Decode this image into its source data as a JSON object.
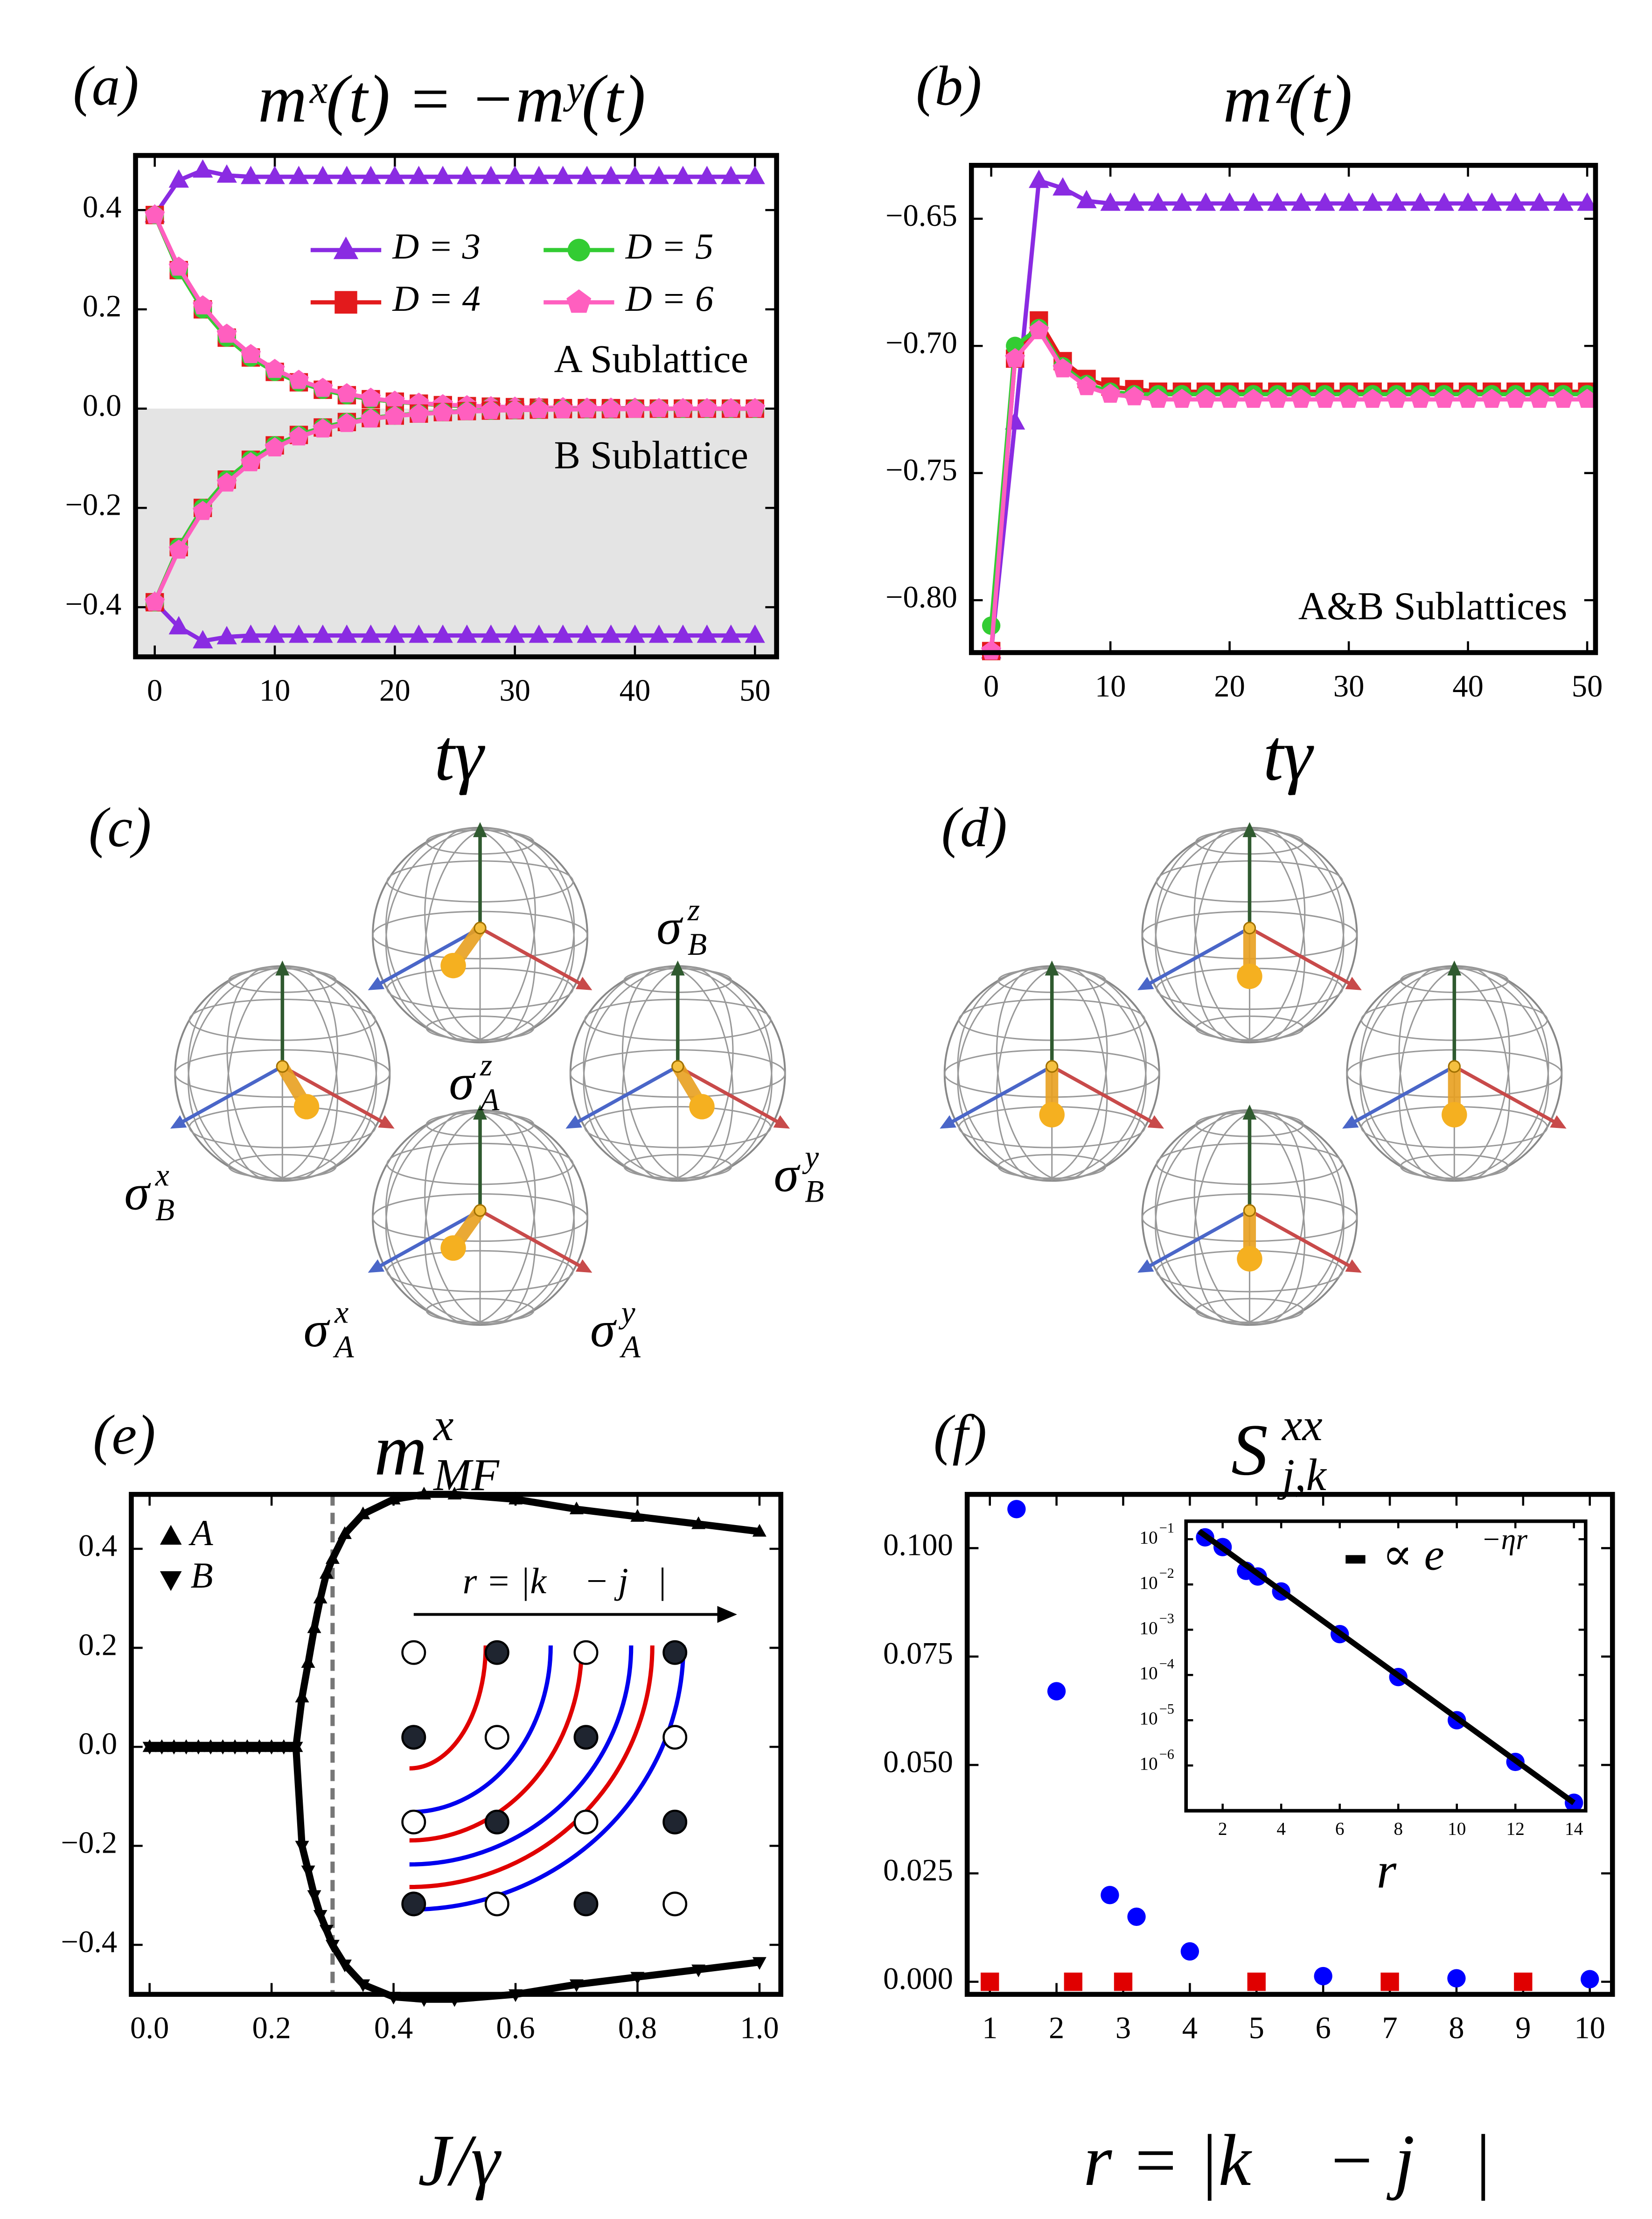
{
  "chart_data": [
    {
      "type": "line",
      "panel": "(a)",
      "title": "mˣ(t) = −mʸ(t)",
      "xlabel": "tγ",
      "annotations": [
        "A Sublattice",
        "B Sublattice"
      ],
      "x": [
        0,
        2,
        4,
        6,
        8,
        10,
        12,
        14,
        16,
        18,
        20,
        22,
        24,
        26,
        28,
        30,
        32,
        34,
        36,
        38,
        40,
        42,
        44,
        46,
        48,
        50
      ],
      "xlim": [
        -1.6,
        51.8
      ],
      "xticks": [
        0,
        10,
        20,
        30,
        40,
        50
      ],
      "ylim": [
        -0.5,
        0.51
      ],
      "yticks": [
        {
          "value": -0.4,
          "label": "−0.4"
        },
        {
          "value": -0.2,
          "label": "−0.2"
        },
        {
          "value": 0,
          "label": "0.0"
        },
        0.2,
        0.4
      ],
      "legend": "upper right",
      "series": [
        {
          "name": "D = 3",
          "color": "#8a2be2",
          "marker": "triangle",
          "values": [
            0.39,
            0.46,
            0.48,
            0.47,
            0.467,
            0.467,
            0.467,
            0.467,
            0.467,
            0.467,
            0.467,
            0.467,
            0.467,
            0.467,
            0.467,
            0.467,
            0.467,
            0.467,
            0.467,
            0.467,
            0.467,
            0.467,
            0.467,
            0.467,
            0.467,
            0.467
          ]
        },
        {
          "name": "D = 4",
          "color": "#e31a1c",
          "marker": "square",
          "values": [
            0.39,
            0.279,
            0.2,
            0.143,
            0.103,
            0.074,
            0.053,
            0.038,
            0.027,
            0.019,
            0.014,
            0.01,
            0.007,
            0.005,
            0.004,
            0.003,
            0.002,
            0.001,
            0.001,
            0.001,
            0,
            0,
            0,
            0,
            0,
            0
          ]
        },
        {
          "name": "D = 5",
          "color": "#33cc33",
          "marker": "circle",
          "values": [
            0.39,
            0.279,
            0.2,
            0.143,
            0.103,
            0.074,
            0.053,
            0.038,
            0.027,
            0.019,
            0.014,
            0.01,
            0.007,
            0.005,
            0.004,
            0.003,
            0.002,
            0.001,
            0.001,
            0.001,
            0,
            0,
            0,
            0,
            0,
            0
          ]
        },
        {
          "name": "D = 6",
          "color": "#ff5fbf",
          "marker": "pentagon",
          "values": [
            0.39,
            0.285,
            0.207,
            0.15,
            0.109,
            0.079,
            0.057,
            0.041,
            0.03,
            0.021,
            0.015,
            0.011,
            0.008,
            0.006,
            0.004,
            0.003,
            0.002,
            0.002,
            0.001,
            0.001,
            0.001,
            0,
            0,
            0,
            0,
            0
          ]
        },
        {
          "color": "#8a2be2",
          "marker": "triangle",
          "values": [
            -0.39,
            -0.44,
            -0.468,
            -0.46,
            -0.457,
            -0.457,
            -0.457,
            -0.457,
            -0.457,
            -0.457,
            -0.457,
            -0.457,
            -0.457,
            -0.457,
            -0.457,
            -0.457,
            -0.457,
            -0.457,
            -0.457,
            -0.457,
            -0.457,
            -0.457,
            -0.457,
            -0.457,
            -0.457,
            -0.457
          ]
        },
        {
          "color": "#e31a1c",
          "marker": "square",
          "values": [
            -0.39,
            -0.279,
            -0.2,
            -0.143,
            -0.103,
            -0.074,
            -0.053,
            -0.038,
            -0.027,
            -0.019,
            -0.014,
            -0.01,
            -0.007,
            -0.005,
            -0.004,
            -0.003,
            -0.002,
            -0.001,
            -0.001,
            -0.001,
            0,
            0,
            0,
            0,
            0,
            0
          ]
        },
        {
          "color": "#33cc33",
          "marker": "circle",
          "values": [
            -0.39,
            -0.279,
            -0.2,
            -0.143,
            -0.103,
            -0.074,
            -0.053,
            -0.038,
            -0.027,
            -0.019,
            -0.014,
            -0.01,
            -0.007,
            -0.005,
            -0.004,
            -0.003,
            -0.002,
            -0.001,
            -0.001,
            -0.001,
            0,
            0,
            0,
            0,
            0,
            0
          ]
        },
        {
          "color": "#ff5fbf",
          "marker": "pentagon",
          "values": [
            -0.39,
            -0.285,
            -0.207,
            -0.15,
            -0.109,
            -0.079,
            -0.057,
            -0.041,
            -0.03,
            -0.021,
            -0.015,
            -0.011,
            -0.008,
            -0.006,
            -0.004,
            -0.003,
            -0.002,
            -0.002,
            -0.001,
            -0.001,
            -0.001,
            0,
            0,
            0,
            0,
            0
          ]
        }
      ]
    },
    {
      "type": "line",
      "panel": "(b)",
      "title": "mᶻ(t)",
      "xlabel": "tγ",
      "annotations": [
        "A&B Sublattices"
      ],
      "x": [
        0,
        2,
        4,
        6,
        8,
        10,
        12,
        14,
        16,
        18,
        20,
        22,
        24,
        26,
        28,
        30,
        32,
        34,
        36,
        38,
        40,
        42,
        44,
        46,
        48,
        50
      ],
      "xlim": [
        -1.66,
        50.7
      ],
      "xticks": [
        0,
        10,
        20,
        30,
        40,
        50
      ],
      "ylim": [
        -0.8206,
        -0.629
      ],
      "yticks": [
        {
          "value": -0.8,
          "label": "−0.80"
        },
        {
          "value": -0.75,
          "label": "−0.75"
        },
        {
          "value": -0.7,
          "label": "−0.70"
        },
        {
          "value": -0.65,
          "label": "−0.65"
        }
      ],
      "series": [
        {
          "color": "#8a2be2",
          "marker": "triangle",
          "values": [
            -0.82,
            -0.73,
            -0.635,
            -0.638,
            -0.643,
            -0.644,
            -0.644,
            -0.644,
            -0.644,
            -0.644,
            -0.644,
            -0.644,
            -0.644,
            -0.644,
            -0.644,
            -0.644,
            -0.644,
            -0.644,
            -0.644,
            -0.644,
            -0.644,
            -0.644,
            -0.644,
            -0.644,
            -0.644,
            -0.644
          ]
        },
        {
          "color": "#e31a1c",
          "marker": "square",
          "values": [
            -0.82,
            -0.705,
            -0.69,
            -0.706,
            -0.713,
            -0.716,
            -0.717,
            -0.718,
            -0.718,
            -0.718,
            -0.718,
            -0.718,
            -0.718,
            -0.718,
            -0.718,
            -0.718,
            -0.718,
            -0.718,
            -0.718,
            -0.718,
            -0.718,
            -0.718,
            -0.718,
            -0.718,
            -0.718,
            -0.718
          ]
        },
        {
          "color": "#33cc33",
          "marker": "circle",
          "values": [
            -0.81,
            -0.7,
            -0.693,
            -0.708,
            -0.715,
            -0.718,
            -0.719,
            -0.719,
            -0.719,
            -0.719,
            -0.719,
            -0.719,
            -0.719,
            -0.719,
            -0.719,
            -0.719,
            -0.719,
            -0.719,
            -0.719,
            -0.719,
            -0.719,
            -0.719,
            -0.719,
            -0.719,
            -0.719,
            -0.719
          ]
        },
        {
          "color": "#ff5fbf",
          "marker": "pentagon",
          "values": [
            -0.82,
            -0.705,
            -0.694,
            -0.709,
            -0.716,
            -0.719,
            -0.72,
            -0.721,
            -0.721,
            -0.721,
            -0.721,
            -0.721,
            -0.721,
            -0.721,
            -0.721,
            -0.721,
            -0.721,
            -0.721,
            -0.721,
            -0.721,
            -0.721,
            -0.721,
            -0.721,
            -0.721,
            -0.721,
            -0.721
          ]
        }
      ]
    },
    {
      "type": "line",
      "panel": "(e)",
      "title": {
        "text": "m",
        "sup": "x",
        "sub": "MF"
      },
      "xlabel": "J/γ",
      "inset_label": "r = |k⃗ − j⃗|",
      "x": [
        0,
        0.02,
        0.04,
        0.06,
        0.08,
        0.1,
        0.12,
        0.14,
        0.16,
        0.18,
        0.2,
        0.22,
        0.24,
        0.25,
        0.26,
        0.27,
        0.28,
        0.29,
        0.3,
        0.32,
        0.35,
        0.4,
        0.45,
        0.5,
        0.6,
        0.7,
        0.8,
        0.9,
        1.0
      ],
      "xlim": [
        -0.03,
        1.035
      ],
      "xticks": [
        {
          "value": 0,
          "label": "0.0"
        },
        0.2,
        0.4,
        0.6,
        0.8,
        {
          "value": 1,
          "label": "1.0"
        }
      ],
      "ylim": [
        -0.5,
        0.51
      ],
      "yticks": [
        {
          "value": -0.4,
          "label": "−0.4"
        },
        {
          "value": -0.2,
          "label": "−0.2"
        },
        {
          "value": 0,
          "label": "0.0"
        },
        0.2,
        0.4
      ],
      "vline": 0.3,
      "legend": "upper left",
      "series": [
        {
          "name": "A",
          "color": "#000000",
          "marker": "triangle",
          "values": [
            0,
            0,
            0,
            0,
            0,
            0,
            0,
            0,
            0,
            0,
            0,
            0,
            0,
            0.1,
            0.17,
            0.24,
            0.3,
            0.35,
            0.38,
            0.43,
            0.47,
            0.5,
            0.51,
            0.51,
            0.5,
            0.48,
            0.465,
            0.45,
            0.435
          ]
        },
        {
          "name": "B",
          "color": "#000000",
          "marker": "triangle-down",
          "values": [
            0,
            0,
            0,
            0,
            0,
            0,
            0,
            0,
            0,
            0,
            0,
            0,
            0,
            -0.2,
            -0.25,
            -0.3,
            -0.34,
            -0.37,
            -0.4,
            -0.44,
            -0.48,
            -0.505,
            -0.51,
            -0.51,
            -0.5,
            -0.48,
            -0.465,
            -0.45,
            -0.435
          ]
        }
      ]
    },
    {
      "type": "scatter",
      "panel": "(f)",
      "title": {
        "text": "S",
        "sup": "xx",
        "sub": "j,k"
      },
      "xlabel": "r = |k⃗ − j⃗|",
      "xlim": [
        0.66,
        10.34
      ],
      "xticks": [
        1,
        2,
        3,
        4,
        5,
        6,
        7,
        8,
        9,
        10
      ],
      "ylim": [
        -0.0029,
        0.1124
      ],
      "yticks": [
        {
          "value": 0,
          "label": "0.000"
        },
        0.025,
        {
          "value": 0.05,
          "label": "0.050"
        },
        0.075,
        {
          "value": 0.1,
          "label": "0.100"
        }
      ],
      "series": [
        {
          "color": "#0000ff",
          "marker": "circle",
          "x": [
            1.4,
            2,
            2.8,
            3.2,
            4,
            6,
            8,
            10
          ],
          "values": [
            0.109,
            0.067,
            0.02,
            0.015,
            0.007,
            0.0013,
            0.0008,
            0.0006
          ]
        },
        {
          "color": "#e00000",
          "marker": "square",
          "x": [
            1,
            2.25,
            3,
            5,
            7,
            9
          ],
          "values": [
            0,
            0,
            0,
            0,
            0,
            0
          ]
        }
      ]
    },
    {
      "type": "scatter",
      "xlabel": "r",
      "log_y": true,
      "xlim": [
        0.75,
        14.4
      ],
      "xticks": [
        2,
        4,
        6,
        8,
        10,
        12,
        14
      ],
      "ylim": [
        1e-07,
        0.25
      ],
      "yticks": [
        {
          "value": 0.1,
          "label": "10",
          "sup": "−1"
        },
        {
          "value": 0.01,
          "label": "10",
          "sup": "−2"
        },
        {
          "value": 0.001,
          "label": "10",
          "sup": "−3"
        },
        {
          "value": 0.0001,
          "label": "10",
          "sup": "−4"
        },
        {
          "value": 1e-05,
          "label": "10",
          "sup": "−5"
        },
        {
          "value": 1e-06,
          "label": "10",
          "sup": "−6"
        }
      ],
      "legend": "upper right",
      "series": [
        {
          "color": "#0000ff",
          "marker": "circle",
          "x": [
            1.4,
            2,
            2.8,
            3.2,
            4,
            6,
            8,
            10,
            12,
            14
          ],
          "values": [
            0.11,
            0.067,
            0.02,
            0.015,
            0.007,
            0.0008,
            9e-05,
            1e-05,
            1.2e-06,
            1.5e-07
          ]
        },
        {
          "name": "∝ e",
          "name_sup": "−ηr",
          "color": "#000000",
          "line": true,
          "x": [
            1.2,
            14
          ],
          "values": [
            0.15,
            1.5e-07
          ]
        }
      ]
    }
  ],
  "diagrams": [
    {
      "label": "(c)",
      "axis_labels": [
        {
          "text": "σ",
          "sup": "z",
          "sub": "B",
          "color": "#1a9a1a"
        },
        {
          "text": "σ",
          "sup": "z",
          "sub": "A",
          "color": "#1a9a1a"
        },
        {
          "text": "σ",
          "sup": "x",
          "sub": "B",
          "color": "#1a1aff"
        },
        {
          "text": "σ",
          "sup": "y",
          "sub": "B",
          "color": "#ff1a1a"
        },
        {
          "text": "σ",
          "sup": "x",
          "sub": "A",
          "color": "#1a1aff"
        },
        {
          "text": "σ",
          "sup": "y",
          "sub": "A",
          "color": "#ff1a1a"
        }
      ]
    },
    {
      "label": "(d)"
    }
  ]
}
